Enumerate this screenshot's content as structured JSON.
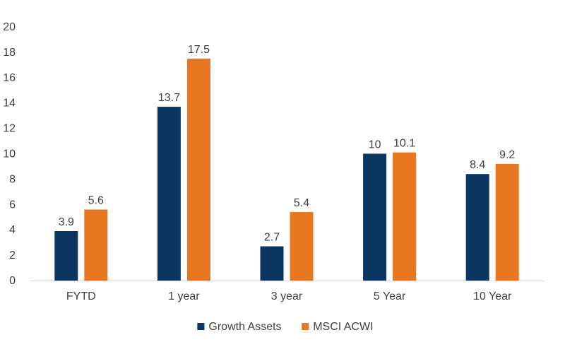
{
  "chart_data": {
    "type": "bar",
    "title": "",
    "xlabel": "",
    "ylabel": "",
    "categories": [
      "FYTD",
      "1 year",
      "3 year",
      "5 Year",
      "10 Year"
    ],
    "series": [
      {
        "name": "Growth Assets",
        "values": [
          3.9,
          13.7,
          2.7,
          10,
          8.4
        ],
        "color": "#0b3662"
      },
      {
        "name": "MSCI ACWI",
        "values": [
          5.6,
          17.5,
          5.4,
          10.1,
          9.2
        ],
        "color": "#e87722"
      }
    ],
    "ylim": [
      0,
      20
    ],
    "yticks": [
      0,
      2,
      4,
      6,
      8,
      10,
      12,
      14,
      16,
      18,
      20
    ],
    "grid": false,
    "legend_position": "bottom-center",
    "data_labels": true
  }
}
